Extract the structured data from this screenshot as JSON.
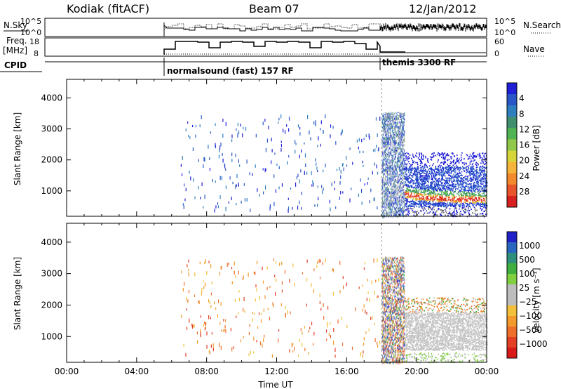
{
  "header": {
    "station": "Kodiak (fitACF)",
    "beam": "Beam 07",
    "date": "12/Jan/2012"
  },
  "sky_panel": {
    "left_label": "N.Sky",
    "right_label": "N.Search",
    "yticks_left": [
      "10^5",
      "10^0"
    ],
    "yticks_right": [
      "10^5",
      "10^0"
    ]
  },
  "freq_panel": {
    "left_label_top": "Freq.",
    "left_label_bottom": "[MHz]",
    "right_label": "Nave",
    "yticks_left": [
      "18",
      "8"
    ],
    "yticks_right": [
      "60",
      "0"
    ]
  },
  "cpid_panel": {
    "label": "CPID",
    "modes": [
      "normalsound (fast) 157 RF",
      "themis 3300 RF"
    ]
  },
  "chart_data": [
    {
      "type": "heatmap",
      "panel": "power",
      "xlabel": "",
      "ylabel": "Slant Range [km]",
      "x_ticks": [
        "00:00",
        "04:00",
        "08:00",
        "12:00",
        "16:00",
        "20:00",
        "00:00"
      ],
      "xlim_hours": [
        0,
        24
      ],
      "y_ticks": [
        1000,
        2000,
        3000,
        4000
      ],
      "ylim_km": [
        180,
        4600
      ],
      "colorbar": {
        "label": "Power [dB]",
        "ticks": [
          "4",
          "8",
          "12",
          "16",
          "20",
          "24",
          "28"
        ],
        "colors": [
          "#1f1fd6",
          "#2a57c8",
          "#2f7fbf",
          "#3f8f6f",
          "#52b352",
          "#92c84a",
          "#d6d63a",
          "#f4b53a",
          "#f28a2b",
          "#e8552a",
          "#d82020"
        ]
      },
      "regions": [
        {
          "from_hour": 18.0,
          "to_hour": 19.3,
          "from_km": 180,
          "to_km": 3550,
          "value": "mixed"
        },
        {
          "from_hour": 19.3,
          "to_hour": 24.0,
          "from_km": 700,
          "to_km": 2200,
          "value": "strong band near 800-1000 km"
        }
      ]
    },
    {
      "type": "heatmap",
      "panel": "velocity",
      "xlabel": "Time UT",
      "ylabel": "Slant Range [km]",
      "x_ticks": [
        "00:00",
        "04:00",
        "08:00",
        "12:00",
        "16:00",
        "20:00",
        "00:00"
      ],
      "xlim_hours": [
        0,
        24
      ],
      "y_ticks": [
        1000,
        2000,
        3000,
        4000
      ],
      "ylim_km": [
        180,
        4600
      ],
      "colorbar": {
        "label": "Velocity [m s⁻¹]",
        "ticks": [
          "1000",
          "500",
          "100",
          "25",
          "−25",
          "−100",
          "−500",
          "−1000"
        ],
        "colors": [
          "#2020c8",
          "#2a66c0",
          "#2f8f7f",
          "#3faf3f",
          "#7fcf3f",
          "#bdbdbd",
          "#bdbdbd",
          "#f2c03a",
          "#f29a2b",
          "#ef6f2a",
          "#e23f24",
          "#d81a1a"
        ]
      },
      "regions": [
        {
          "from_hour": 18.0,
          "to_hour": 19.3,
          "from_km": 180,
          "to_km": 3550,
          "value": "mixed"
        },
        {
          "from_hour": 19.3,
          "to_hour": 24.0,
          "from_km": 600,
          "to_km": 1800,
          "value": "ground scatter (grey)"
        }
      ]
    }
  ]
}
